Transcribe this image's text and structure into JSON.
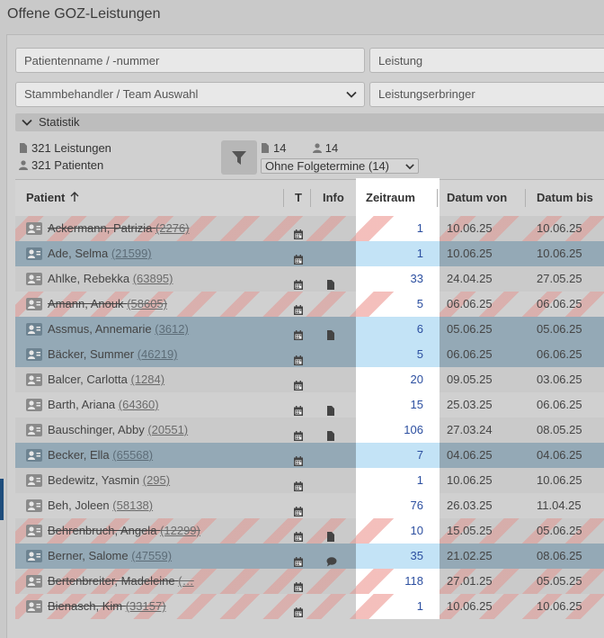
{
  "page_title": "Offene GOZ-Leistungen",
  "filters": {
    "patient_placeholder": "Patientenname / -nummer",
    "leistung_placeholder": "Leistung",
    "stammbehandler_label": "Stammbehandler / Team Auswahl",
    "leistungserbringer_label": "Leistungserbringer"
  },
  "statistik_label": "Statistik",
  "summary": {
    "leistungen": "321 Leistungen",
    "patienten": "321 Patienten",
    "count_documents": "14",
    "count_persons": "14",
    "folgetermine_select": "Ohne Folgetermine (14)"
  },
  "table": {
    "headers": {
      "patient": "Patient",
      "t": "T",
      "info": "Info",
      "zeitraum": "Zeitraum",
      "datum_von": "Datum von",
      "datum_bis": "Datum bis"
    },
    "rows": [
      {
        "name": "Ackermann, Patrizia",
        "num": "(2276)",
        "zeitraum": "1",
        "von": "10.06.25",
        "bis": "10.06.25",
        "info": "",
        "selected": false,
        "striped": true,
        "struck": true
      },
      {
        "name": "Ade, Selma",
        "num": "(21599)",
        "zeitraum": "1",
        "von": "10.06.25",
        "bis": "10.06.25",
        "info": "",
        "selected": true,
        "striped": false,
        "struck": false
      },
      {
        "name": "Ahlke, Rebekka",
        "num": "(63895)",
        "zeitraum": "33",
        "von": "24.04.25",
        "bis": "27.05.25",
        "info": "document",
        "selected": false,
        "striped": false,
        "struck": false
      },
      {
        "name": "Amann, Anouk",
        "num": "(58605)",
        "zeitraum": "5",
        "von": "06.06.25",
        "bis": "06.06.25",
        "info": "",
        "selected": false,
        "striped": true,
        "struck": true
      },
      {
        "name": "Assmus, Annemarie",
        "num": "(3612)",
        "zeitraum": "6",
        "von": "05.06.25",
        "bis": "05.06.25",
        "info": "document",
        "selected": true,
        "striped": false,
        "struck": false
      },
      {
        "name": "Bäcker, Summer",
        "num": "(46219)",
        "zeitraum": "5",
        "von": "06.06.25",
        "bis": "06.06.25",
        "info": "",
        "selected": true,
        "striped": false,
        "struck": false
      },
      {
        "name": "Balcer, Carlotta",
        "num": "(1284)",
        "zeitraum": "20",
        "von": "09.05.25",
        "bis": "03.06.25",
        "info": "",
        "selected": false,
        "striped": false,
        "struck": false
      },
      {
        "name": "Barth, Ariana",
        "num": "(64360)",
        "zeitraum": "15",
        "von": "25.03.25",
        "bis": "06.06.25",
        "info": "document",
        "selected": false,
        "striped": false,
        "struck": false
      },
      {
        "name": "Bauschinger, Abby",
        "num": "(20551)",
        "zeitraum": "106",
        "von": "27.03.24",
        "bis": "08.05.25",
        "info": "document",
        "selected": false,
        "striped": false,
        "struck": false
      },
      {
        "name": "Becker, Ella",
        "num": "(65568)",
        "zeitraum": "7",
        "von": "04.06.25",
        "bis": "04.06.25",
        "info": "",
        "selected": true,
        "striped": false,
        "struck": false
      },
      {
        "name": "Bedewitz, Yasmin",
        "num": "(295)",
        "zeitraum": "1",
        "von": "10.06.25",
        "bis": "10.06.25",
        "info": "",
        "selected": false,
        "striped": false,
        "struck": false
      },
      {
        "name": "Beh, Joleen",
        "num": "(58138)",
        "zeitraum": "76",
        "von": "26.03.25",
        "bis": "11.04.25",
        "info": "",
        "selected": false,
        "striped": false,
        "struck": false
      },
      {
        "name": "Behrenbruch, Angela",
        "num": "(12299)",
        "zeitraum": "10",
        "von": "15.05.25",
        "bis": "05.06.25",
        "info": "document",
        "selected": false,
        "striped": true,
        "struck": true
      },
      {
        "name": "Berner, Salome",
        "num": "(47559)",
        "zeitraum": "35",
        "von": "21.02.25",
        "bis": "08.06.25",
        "info": "comment",
        "selected": true,
        "striped": false,
        "struck": false
      },
      {
        "name": "Bertenbreiter, Madeleine",
        "num": "(…",
        "zeitraum": "118",
        "von": "27.01.25",
        "bis": "05.05.25",
        "info": "",
        "selected": false,
        "striped": true,
        "struck": true
      },
      {
        "name": "Bienasch, Kim",
        "num": "(33157)",
        "zeitraum": "1",
        "von": "10.06.25",
        "bis": "10.06.25",
        "info": "",
        "selected": false,
        "striped": true,
        "struck": true
      }
    ]
  }
}
